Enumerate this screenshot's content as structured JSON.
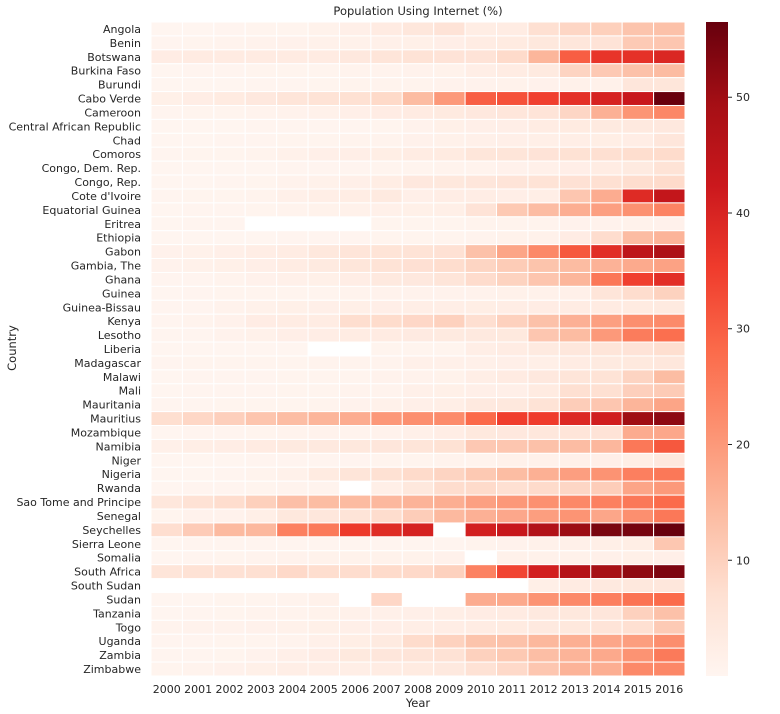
{
  "chart_data": {
    "type": "heatmap",
    "title": "Population Using Internet (%)",
    "xlabel": "Year",
    "ylabel": "Country",
    "x": [
      "2000",
      "2001",
      "2002",
      "2003",
      "2004",
      "2005",
      "2006",
      "2007",
      "2008",
      "2009",
      "2010",
      "2011",
      "2012",
      "2013",
      "2014",
      "2015",
      "2016"
    ],
    "y": [
      "Angola",
      "Benin",
      "Botswana",
      "Burkina Faso",
      "Burundi",
      "Cabo Verde",
      "Cameroon",
      "Central African Republic",
      "Chad",
      "Comoros",
      "Congo, Dem. Rep.",
      "Congo, Rep.",
      "Cote d'Ivoire",
      "Equatorial Guinea",
      "Eritrea",
      "Ethiopia",
      "Gabon",
      "Gambia, The",
      "Ghana",
      "Guinea",
      "Guinea-Bissau",
      "Kenya",
      "Lesotho",
      "Liberia",
      "Madagascar",
      "Malawi",
      "Mali",
      "Mauritania",
      "Mauritius",
      "Mozambique",
      "Namibia",
      "Niger",
      "Nigeria",
      "Rwanda",
      "Sao Tome and Principe",
      "Senegal",
      "Seychelles",
      "Sierra Leone",
      "Somalia",
      "South Africa",
      "South Sudan",
      "Sudan",
      "Tanzania",
      "Togo",
      "Uganda",
      "Zambia",
      "Zimbabwe"
    ],
    "values": [
      [
        0.1,
        0.1,
        0.3,
        0.4,
        0.5,
        1.1,
        1.9,
        3.2,
        4.6,
        6,
        2.8,
        3.1,
        7,
        8.9,
        10.2,
        12.4,
        13
      ],
      [
        0.2,
        0.4,
        0.7,
        0.9,
        1.2,
        1.3,
        1.5,
        1.7,
        1.8,
        2.2,
        3.1,
        3.5,
        4.5,
        4.9,
        6,
        11.3,
        12
      ],
      [
        2.9,
        3.4,
        3.4,
        3.4,
        3.3,
        3.3,
        4.3,
        5.3,
        6.2,
        6,
        6,
        8,
        15,
        30,
        36.7,
        37.3,
        39.4
      ],
      [
        0.1,
        0.2,
        0.2,
        0.4,
        0.4,
        0.5,
        0.6,
        0.8,
        0.9,
        1.1,
        2.4,
        3,
        3.7,
        9.4,
        11.4,
        13,
        14
      ],
      [
        0.1,
        0.1,
        0.1,
        0.2,
        0.3,
        0.5,
        0.7,
        0.8,
        0.8,
        0.9,
        1,
        1.1,
        1.2,
        1.3,
        1.4,
        4.9,
        5.2
      ],
      [
        1.8,
        2.7,
        3.5,
        4.3,
        5.3,
        6.1,
        6.8,
        8.3,
        14,
        20,
        30,
        32,
        34.7,
        37.5,
        40.3,
        43,
        56.4
      ],
      [
        0.3,
        0.5,
        0.4,
        0.6,
        1,
        1.4,
        2,
        2.9,
        3.4,
        3.8,
        4.3,
        5,
        5.7,
        8.9,
        16,
        20.7,
        23.2
      ],
      [
        0.1,
        0.1,
        0.1,
        0.2,
        0.2,
        0.3,
        0.3,
        0.4,
        1,
        1.8,
        2,
        2.2,
        3,
        3.5,
        3.8,
        4,
        4.3
      ],
      [
        0,
        0,
        0.2,
        0.3,
        0.4,
        0.4,
        0.6,
        0.8,
        1.2,
        1.5,
        1.7,
        1.9,
        2.1,
        2.3,
        2.5,
        2.7,
        5
      ],
      [
        0.3,
        0.4,
        0.4,
        0.6,
        1.5,
        2,
        2.2,
        2.5,
        3,
        3.5,
        5.1,
        5.5,
        6,
        6.5,
        7,
        7.5,
        7.9
      ],
      [
        0,
        0,
        0.1,
        0.1,
        0.2,
        0.2,
        0.3,
        0.4,
        0.4,
        0.6,
        0.7,
        1.2,
        1.7,
        2.2,
        3,
        3.8,
        6.2
      ],
      [
        0,
        0,
        0.2,
        0.5,
        1,
        1.5,
        2,
        2.8,
        4.3,
        4.5,
        5,
        5.6,
        6.1,
        6.6,
        7.1,
        7.6,
        8.1
      ],
      [
        0.2,
        0.4,
        0.5,
        0.8,
        1.6,
        2.4,
        2.8,
        3.7,
        1.9,
        2.6,
        2.7,
        2.2,
        2.4,
        12,
        16.7,
        38.6,
        43.8
      ],
      [
        0.1,
        0.2,
        0.3,
        0.5,
        0.8,
        1.1,
        1.3,
        1.6,
        1.8,
        2.1,
        6,
        11.5,
        13.9,
        16.4,
        18.9,
        21.3,
        23.8
      ],
      [
        0.1,
        0.2,
        0.2,
        null,
        null,
        null,
        null,
        0.4,
        0.4,
        0.5,
        0.6,
        0.7,
        0.8,
        0.9,
        1,
        1.1,
        1.2
      ],
      [
        0,
        0,
        0.1,
        0.1,
        0.2,
        0.2,
        0.3,
        0.4,
        0.5,
        0.5,
        0.8,
        1.1,
        1.5,
        2.9,
        7.7,
        13.9,
        15.4
      ],
      [
        1.2,
        1.4,
        2,
        2.6,
        3,
        4.5,
        5.5,
        5.8,
        6.2,
        6.7,
        13,
        18,
        23,
        31,
        38,
        45,
        48
      ],
      [
        0.9,
        1.3,
        1.8,
        2.2,
        3.1,
        3.8,
        5.2,
        6.2,
        6.9,
        7.6,
        9.2,
        10.9,
        12.5,
        14,
        15.6,
        17.1,
        18.5
      ],
      [
        0.2,
        0.3,
        0.8,
        1.2,
        1.7,
        1.8,
        2.7,
        3.9,
        4.3,
        5.4,
        7.8,
        9.6,
        12.3,
        15,
        26,
        34.7,
        37.9
      ],
      [
        0.1,
        0.2,
        0.4,
        0.5,
        0.5,
        0.5,
        0.6,
        0.9,
        0.9,
        0.9,
        1,
        1.3,
        1.5,
        1.6,
        5.4,
        7.6,
        9.8
      ],
      [
        0.2,
        0.2,
        1,
        1.4,
        1.8,
        1.9,
        2.1,
        2.2,
        2.3,
        2.3,
        2.5,
        2.7,
        2.9,
        3.1,
        3.3,
        3.5,
        3.8
      ],
      [
        0.3,
        0.6,
        1.2,
        2.9,
        3,
        3.1,
        7.5,
        7.9,
        8.7,
        10,
        7.2,
        9.9,
        13,
        16,
        19,
        21.8,
        22.6
      ],
      [
        0.2,
        0.2,
        1,
        1.5,
        2.2,
        2.6,
        3,
        3.4,
        3.6,
        3.7,
        3.9,
        4.2,
        12,
        14,
        20,
        25,
        27.4
      ],
      [
        0,
        0,
        0,
        0,
        0,
        null,
        null,
        0.5,
        0.5,
        0.5,
        2.3,
        3,
        3.8,
        4.6,
        5.4,
        5.9,
        7.3
      ],
      [
        0.2,
        0.4,
        0.4,
        0.4,
        0.5,
        0.6,
        0.6,
        0.6,
        1.7,
        1.6,
        1.7,
        1.9,
        2.1,
        3,
        3.7,
        4.2,
        4.7
      ],
      [
        0.1,
        0.2,
        0.3,
        0.3,
        0.4,
        0.4,
        0.4,
        1,
        1,
        1.1,
        2.3,
        3.3,
        4.3,
        5.3,
        6.1,
        9.3,
        13.8
      ],
      [
        0.1,
        0.2,
        0.2,
        0.3,
        0.4,
        0.5,
        0.7,
        0.8,
        1.6,
        1.8,
        1.9,
        2,
        3.5,
        7,
        7,
        10.3,
        11.1
      ],
      [
        0.2,
        0.3,
        0.4,
        0.4,
        0.5,
        0.7,
        1,
        1.4,
        1.9,
        2.3,
        4,
        4.5,
        6.2,
        10.7,
        12,
        15.2,
        18
      ],
      [
        7.3,
        8.8,
        10.3,
        12.2,
        13.7,
        15.2,
        16.7,
        20.2,
        21.8,
        22.5,
        28.3,
        35,
        35.4,
        39,
        41.4,
        50.1,
        52.2
      ],
      [
        0.1,
        0.2,
        0.3,
        0.4,
        0.7,
        0.9,
        0.8,
        0.9,
        1.6,
        2.7,
        4.2,
        4.3,
        4.8,
        5.4,
        6,
        16.9,
        17.5
      ],
      [
        1.6,
        2.4,
        2.6,
        3.4,
        3.8,
        4,
        4.4,
        4.9,
        5.3,
        6.5,
        11.6,
        12,
        12.9,
        13.9,
        14.8,
        25.7,
        31
      ],
      [
        0,
        0.1,
        0.1,
        0.2,
        0.2,
        0.2,
        0.3,
        0.4,
        0.5,
        0.8,
        0.8,
        1.3,
        1.4,
        1.7,
        2,
        2.5,
        4.3
      ],
      [
        0.1,
        0.1,
        0.3,
        0.6,
        1.3,
        3.5,
        5.5,
        6.8,
        8,
        9.3,
        11.5,
        13.8,
        16.1,
        19.1,
        21,
        24.5,
        25.7
      ],
      [
        0.1,
        0.2,
        0.3,
        0.4,
        0.6,
        0.6,
        null,
        2.1,
        4.5,
        7.7,
        8,
        7,
        8,
        9,
        10.6,
        18,
        20
      ],
      [
        4.6,
        6.3,
        7.6,
        10.2,
        13.3,
        13.8,
        14.2,
        14.6,
        15.5,
        16.4,
        18.8,
        20.2,
        21.6,
        23,
        24.4,
        25.8,
        28
      ],
      [
        0.4,
        1,
        1,
        2.1,
        4.4,
        4.8,
        5.6,
        7.7,
        10.7,
        14.5,
        16,
        17.5,
        19.2,
        20.9,
        17.7,
        21.7,
        25.7
      ],
      [
        7.4,
        11,
        14.3,
        14.6,
        24.3,
        25.4,
        35.7,
        38.4,
        40.4,
        null,
        41,
        43.2,
        47.1,
        50.4,
        54.3,
        54.8,
        56.5
      ],
      [
        0.1,
        0.2,
        0.2,
        0.2,
        0.2,
        0.2,
        0.2,
        0.2,
        0.3,
        0.3,
        0.6,
        0.9,
        1.3,
        1.7,
        2.1,
        2.5,
        11.8
      ],
      [
        0,
        0.2,
        0.4,
        0.6,
        1,
        1.1,
        1.1,
        1.1,
        1.1,
        1.2,
        null,
        1.3,
        1.4,
        1.5,
        1.6,
        1.8,
        1.9
      ],
      [
        5.3,
        6.3,
        6.7,
        7,
        8.4,
        7.5,
        7.6,
        8.1,
        8.4,
        10,
        24,
        34,
        41,
        46.5,
        49,
        51.9,
        54
      ],
      [
        null,
        null,
        null,
        null,
        null,
        null,
        null,
        null,
        null,
        null,
        null,
        null,
        2.1,
        3.4,
        4.1,
        4.5,
        4.8
      ],
      [
        0,
        0.1,
        0.5,
        0.5,
        0.8,
        1.3,
        null,
        8.7,
        null,
        null,
        16.7,
        17.3,
        21,
        22.7,
        24.6,
        26.6,
        28
      ],
      [
        0.1,
        0.2,
        0.5,
        0.6,
        0.8,
        1.1,
        1.3,
        1.6,
        1.9,
        2.4,
        2.9,
        3.2,
        4,
        4.4,
        4.9,
        10,
        13
      ],
      [
        0.8,
        1,
        1,
        1.2,
        1.5,
        1.8,
        2,
        2.2,
        2.4,
        2.6,
        3,
        3.5,
        4,
        4.5,
        5.7,
        7.1,
        11.3
      ],
      [
        0.2,
        0.2,
        0.4,
        0.5,
        0.7,
        1.7,
        2.5,
        3.7,
        7.9,
        9.8,
        12.5,
        13,
        14.7,
        16.2,
        17.7,
        19.2,
        21.9
      ],
      [
        0.2,
        0.2,
        0.5,
        1,
        2,
        2.9,
        4.2,
        4.9,
        5.6,
        6.3,
        10,
        11.5,
        13.5,
        15.4,
        17.3,
        21,
        25.5
      ],
      [
        0.4,
        0.8,
        1.2,
        1.8,
        2.4,
        2.4,
        2.4,
        3,
        3.5,
        4,
        6.4,
        8.4,
        12,
        15.5,
        16.4,
        22.7,
        23.1
      ]
    ],
    "colorbar": {
      "min": 0,
      "max": 56.5,
      "ticks": [
        10,
        20,
        30,
        40,
        50
      ],
      "colormap": "Reds"
    },
    "grid": false,
    "legend": "colorbar-right"
  }
}
